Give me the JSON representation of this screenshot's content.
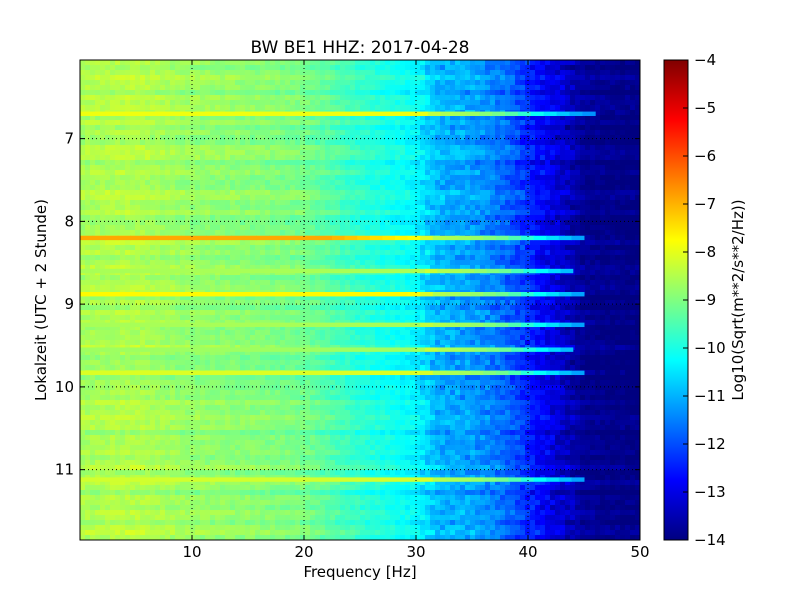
{
  "chart_data": {
    "type": "heatmap",
    "title": "BW BE1 HHZ: 2017-04-28",
    "xlabel": "Frequency [Hz]",
    "ylabel": "Lokalzeit (UTC + 2 Stunde)",
    "xlim": [
      0,
      50
    ],
    "ylim": [
      6.05,
      11.85
    ],
    "y_inverted": true,
    "x_ticks": [
      10,
      20,
      30,
      40,
      50
    ],
    "y_ticks": [
      7,
      8,
      9,
      10,
      11
    ],
    "grid": true,
    "colormap": "jet",
    "colorbar": {
      "label": "Log10(Sqrt(m**2/s**2/Hz))",
      "range": [
        -14,
        -4
      ],
      "ticks": [
        -14,
        -13,
        -12,
        -11,
        -10,
        -9,
        -8,
        -7,
        -6,
        -5,
        -4
      ]
    },
    "frequency_profile": [
      {
        "f": 0,
        "v": -8.6
      },
      {
        "f": 5,
        "v": -8.5
      },
      {
        "f": 10,
        "v": -8.8
      },
      {
        "f": 15,
        "v": -8.9
      },
      {
        "f": 20,
        "v": -9.1
      },
      {
        "f": 25,
        "v": -9.8
      },
      {
        "f": 30,
        "v": -10.3
      },
      {
        "f": 32,
        "v": -11.0
      },
      {
        "f": 35,
        "v": -11.2
      },
      {
        "f": 38,
        "v": -11.7
      },
      {
        "f": 40,
        "v": -12.4
      },
      {
        "f": 42,
        "v": -13.0
      },
      {
        "f": 45,
        "v": -13.8
      },
      {
        "f": 50,
        "v": -14.0
      }
    ],
    "noise_bands": [
      {
        "time": 6.7,
        "level": -7.9,
        "f_end": 46
      },
      {
        "time": 8.2,
        "level": -6.9,
        "f_end": 45
      },
      {
        "time": 8.6,
        "level": -8.6,
        "f_end": 44
      },
      {
        "time": 8.88,
        "level": -7.7,
        "f_end": 45
      },
      {
        "time": 9.25,
        "level": -8.6,
        "f_end": 45
      },
      {
        "time": 9.55,
        "level": -8.7,
        "f_end": 44
      },
      {
        "time": 9.83,
        "level": -8.1,
        "f_end": 45
      },
      {
        "time": 11.12,
        "level": -8.2,
        "f_end": 45
      }
    ]
  }
}
